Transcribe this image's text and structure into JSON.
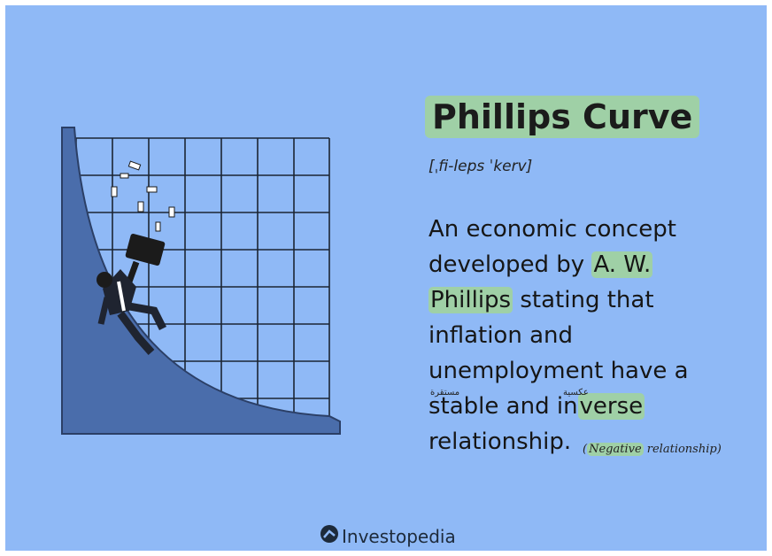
{
  "header": {
    "title": "Phillips Curve",
    "pronunciation": "[ˌfi-leps ˈkerv]"
  },
  "definition": {
    "lines": [
      [
        {
          "text": "An economic concept",
          "highlight": false
        }
      ],
      [
        {
          "text": "developed by ",
          "highlight": false
        },
        {
          "text": "A. W.",
          "highlight": true
        }
      ],
      [
        {
          "text": "Phillips",
          "highlight": true
        },
        {
          "text": " stating that",
          "highlight": false
        }
      ],
      [
        {
          "text": "inflation and",
          "highlight": false
        }
      ],
      [
        {
          "text": "unemployment have a",
          "highlight": false
        }
      ],
      [
        {
          "text": "stable and in",
          "highlight": false
        },
        {
          "text": "verse",
          "highlight": true
        }
      ],
      [
        {
          "text": "relationship.",
          "highlight": false
        }
      ]
    ]
  },
  "annotations": {
    "note_open": "(",
    "note_highlight": "Negative",
    "note_rest": " relationship)",
    "above_stable": "مستقرة",
    "above_inverse": "عكسية"
  },
  "footer": {
    "brand": "Investopedia"
  }
}
